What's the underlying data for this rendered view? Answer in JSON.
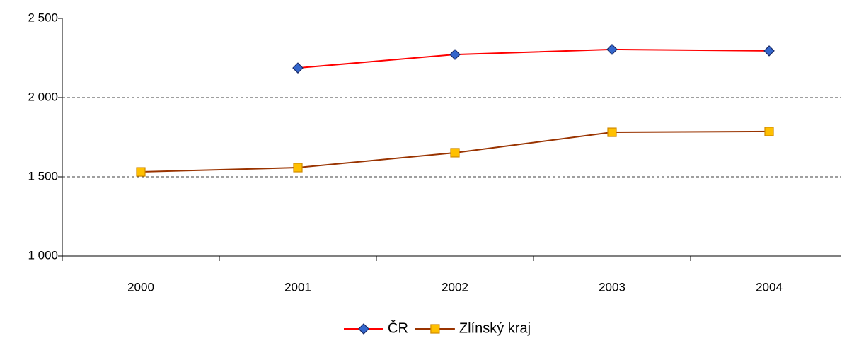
{
  "chart_data": {
    "type": "line",
    "categories": [
      "2000",
      "2001",
      "2002",
      "2003",
      "2004"
    ],
    "series": [
      {
        "name": "ČR",
        "color": "#ff0000",
        "marker_color": "#3366cc",
        "marker": "diamond",
        "values": [
          null,
          2187,
          2272,
          2304,
          2295
        ]
      },
      {
        "name": "Zlínský kraj",
        "color": "#993300",
        "marker_color": "#ffc000",
        "marker": "square",
        "values": [
          1531,
          1558,
          1652,
          1781,
          1786
        ]
      }
    ],
    "ylim": [
      1000,
      2500
    ],
    "yticks": [
      {
        "value": 1000,
        "label": "1 000"
      },
      {
        "value": 1500,
        "label": "1 500"
      },
      {
        "value": 2000,
        "label": "2 000"
      },
      {
        "value": 2500,
        "label": "2 500"
      }
    ],
    "grid": true,
    "legend": "bottom"
  }
}
